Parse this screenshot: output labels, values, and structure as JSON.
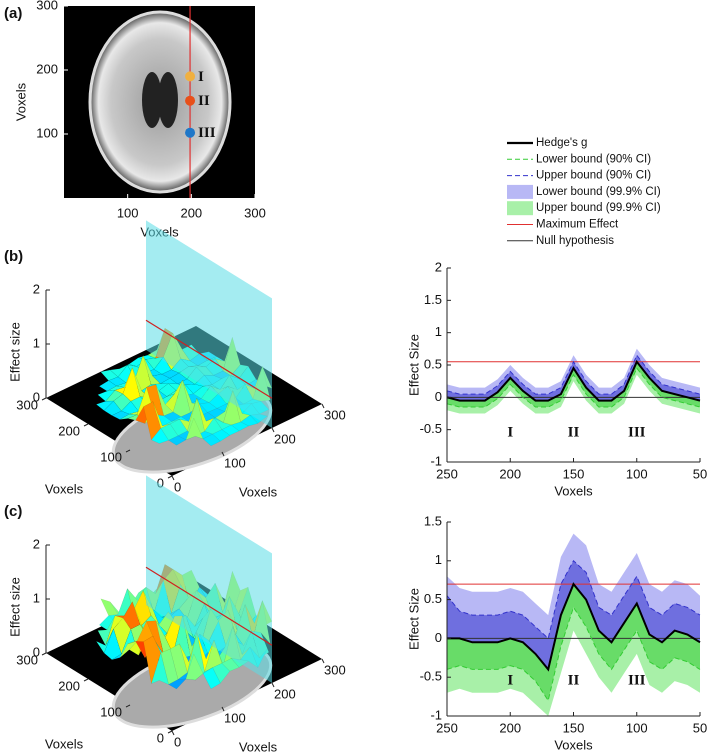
{
  "chart_data": [
    {
      "type": "image",
      "panel": "(a)",
      "xlabel": "Voxels",
      "ylabel": "Voxels",
      "xlim": [
        0,
        300
      ],
      "ylim": [
        0,
        300
      ],
      "xticks": [
        100,
        200,
        300
      ],
      "yticks": [
        100,
        200,
        300
      ],
      "line_x": 198,
      "line_color": "#e03030",
      "points": {
        "labels": [
          "I",
          "II",
          "III"
        ],
        "x": [
          198,
          198,
          198
        ],
        "y": [
          190,
          152,
          102
        ],
        "colors": [
          "#f0b040",
          "#e8501a",
          "#1f77c8"
        ]
      }
    },
    {
      "type": "surface",
      "panel": "(b)",
      "xlabel": "Voxels",
      "ylabel": "Voxels",
      "zlabel": "Effect size",
      "xlim": [
        0,
        300
      ],
      "ylim": [
        0,
        300
      ],
      "zlim": [
        0,
        2
      ],
      "xticks": [
        0,
        100,
        200,
        300
      ],
      "yticks": [
        0,
        100,
        200,
        300
      ],
      "zticks": [
        0,
        1,
        2
      ],
      "plane_x": 200,
      "max_effect": 0.55
    },
    {
      "type": "line",
      "xlabel": "Voxels",
      "ylabel": "Effect Size",
      "x": [
        250,
        240,
        230,
        220,
        210,
        200,
        190,
        180,
        170,
        160,
        150,
        140,
        130,
        120,
        110,
        100,
        90,
        80,
        70,
        60,
        50
      ],
      "xlim": [
        250,
        50
      ],
      "ylim": [
        -1,
        2
      ],
      "xticks": [
        250,
        200,
        150,
        100,
        50
      ],
      "yticks": [
        -1,
        -0.5,
        0,
        0.5,
        1,
        1.5,
        2
      ],
      "series": [
        {
          "name": "Hedge's g",
          "color": "#000000",
          "style": "solid",
          "values": [
            0.0,
            -0.05,
            -0.05,
            -0.05,
            0.08,
            0.3,
            0.1,
            -0.05,
            -0.05,
            0.05,
            0.45,
            0.15,
            -0.05,
            -0.05,
            0.1,
            0.55,
            0.3,
            0.1,
            0.05,
            0.0,
            -0.05
          ]
        },
        {
          "name": "Lower bound (90% CI)",
          "color": "#33cc33",
          "style": "dashed",
          "values": [
            -0.1,
            -0.15,
            -0.15,
            -0.15,
            -0.02,
            0.2,
            0,
            -0.15,
            -0.15,
            -0.05,
            0.35,
            0.05,
            -0.15,
            -0.15,
            0,
            0.45,
            0.2,
            0,
            -0.05,
            -0.1,
            -0.15
          ]
        },
        {
          "name": "Upper bound (90% CI)",
          "color": "#3333cc",
          "style": "dashed",
          "values": [
            0.1,
            0.05,
            0.05,
            0.05,
            0.18,
            0.4,
            0.2,
            0.05,
            0.05,
            0.15,
            0.55,
            0.25,
            0.05,
            0.05,
            0.2,
            0.65,
            0.4,
            0.2,
            0.15,
            0.1,
            0.05
          ]
        },
        {
          "name": "Lower bound (99.9% CI)",
          "color": "#b8b8f5",
          "style": "band",
          "values": [
            0.2,
            0.15,
            0.15,
            0.15,
            0.28,
            0.5,
            0.3,
            0.15,
            0.15,
            0.25,
            0.65,
            0.35,
            0.15,
            0.15,
            0.3,
            0.75,
            0.5,
            0.3,
            0.25,
            0.2,
            0.15
          ]
        },
        {
          "name": "Upper bound (99.9% CI)",
          "color": "#a8f0a8",
          "style": "band",
          "values": [
            -0.2,
            -0.25,
            -0.25,
            -0.25,
            -0.12,
            0.1,
            -0.1,
            -0.25,
            -0.25,
            -0.15,
            0.25,
            -0.05,
            -0.25,
            -0.25,
            -0.1,
            0.35,
            0.1,
            -0.1,
            -0.15,
            -0.2,
            -0.25
          ]
        }
      ],
      "hlines": [
        {
          "name": "Maximum Effect",
          "color": "#e03030",
          "value": 0.55
        },
        {
          "name": "Null hypothesis",
          "color": "#333333",
          "value": 0
        }
      ],
      "annotations": [
        {
          "text": "I",
          "x": 200,
          "y": -0.55
        },
        {
          "text": "II",
          "x": 150,
          "y": -0.55
        },
        {
          "text": "III",
          "x": 100,
          "y": -0.55
        }
      ]
    },
    {
      "type": "surface",
      "panel": "(c)",
      "xlabel": "Voxels",
      "ylabel": "Voxels",
      "zlabel": "Effect size",
      "xlim": [
        0,
        300
      ],
      "ylim": [
        0,
        300
      ],
      "zlim": [
        0,
        2
      ],
      "xticks": [
        0,
        100,
        200,
        300
      ],
      "yticks": [
        0,
        100,
        200,
        300
      ],
      "zticks": [
        0,
        1,
        2
      ],
      "plane_x": 200,
      "max_effect": 0.7
    },
    {
      "type": "line",
      "xlabel": "Voxels",
      "ylabel": "Effect Size",
      "x": [
        250,
        240,
        230,
        220,
        210,
        200,
        190,
        180,
        170,
        160,
        150,
        140,
        130,
        120,
        110,
        100,
        90,
        80,
        70,
        60,
        50
      ],
      "xlim": [
        250,
        50
      ],
      "ylim": [
        -1,
        1.5
      ],
      "xticks": [
        250,
        200,
        150,
        100,
        50
      ],
      "yticks": [
        -1,
        -0.5,
        0,
        0.5,
        1,
        1.5
      ],
      "series": [
        {
          "color": "#000000",
          "style": "solid",
          "values": [
            0.0,
            0.0,
            -0.05,
            -0.05,
            -0.05,
            0.0,
            -0.05,
            -0.2,
            -0.4,
            0.3,
            0.7,
            0.5,
            0.1,
            -0.05,
            0.2,
            0.45,
            0.05,
            -0.05,
            0.1,
            0.05,
            -0.05
          ]
        },
        {
          "color": "#33cc33",
          "style": "dashed",
          "values": [
            -0.4,
            -0.35,
            -0.4,
            -0.4,
            -0.4,
            -0.35,
            -0.4,
            -0.55,
            -0.8,
            -0.1,
            0.4,
            0.15,
            -0.2,
            -0.4,
            -0.15,
            0.1,
            -0.3,
            -0.4,
            -0.25,
            -0.3,
            -0.4
          ]
        },
        {
          "color": "#3333cc",
          "style": "dashed",
          "values": [
            0.55,
            0.35,
            0.3,
            0.3,
            0.3,
            0.35,
            0.3,
            0.15,
            0.0,
            0.7,
            1.0,
            0.85,
            0.4,
            0.3,
            0.55,
            0.8,
            0.4,
            0.3,
            0.45,
            0.4,
            0.3
          ]
        },
        {
          "color": "#b8b8f5",
          "style": "band",
          "values": [
            0.8,
            0.65,
            0.6,
            0.6,
            0.6,
            0.65,
            0.6,
            0.45,
            0.3,
            1.05,
            1.35,
            1.2,
            0.7,
            0.6,
            0.85,
            1.1,
            0.7,
            0.6,
            0.75,
            0.7,
            0.55
          ]
        },
        {
          "color": "#a8f0a8",
          "style": "band",
          "values": [
            -0.7,
            -0.65,
            -0.7,
            -0.7,
            -0.7,
            -0.65,
            -0.7,
            -0.85,
            -1.0,
            -0.45,
            0.1,
            -0.2,
            -0.5,
            -0.7,
            -0.45,
            -0.2,
            -0.6,
            -0.7,
            -0.55,
            -0.6,
            -0.7
          ]
        }
      ],
      "hlines": [
        {
          "color": "#e03030",
          "value": 0.7
        },
        {
          "color": "#333333",
          "value": 0
        }
      ],
      "annotations": [
        {
          "text": "I",
          "x": 200,
          "y": -0.55
        },
        {
          "text": "II",
          "x": 150,
          "y": -0.55
        },
        {
          "text": "III",
          "x": 100,
          "y": -0.55
        }
      ]
    }
  ]
}
